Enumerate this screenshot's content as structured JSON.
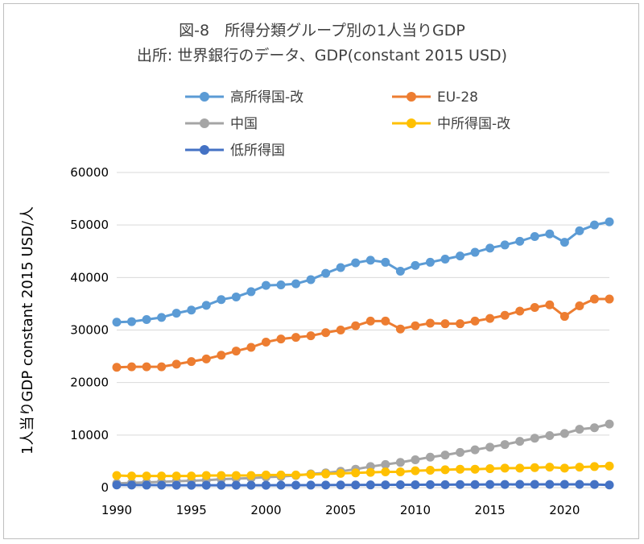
{
  "chart_data": {
    "type": "line",
    "title_lines": [
      "図-8　所得分類グループ別の1人当りGDP",
      "出所: 世界銀行のデータ、GDP(constant 2015 USD)"
    ],
    "xlabel": "",
    "ylabel": "1人当りGDP  constant 2015 USD/人",
    "xlim": [
      1990,
      2023
    ],
    "ylim": [
      0,
      60000
    ],
    "x_ticks": [
      "1990",
      "1995",
      "2000",
      "2005",
      "2010",
      "2015",
      "2020"
    ],
    "x_tick_values": [
      1990,
      1995,
      2000,
      2005,
      2010,
      2015,
      2020
    ],
    "y_ticks": [
      "0",
      "10000",
      "20000",
      "30000",
      "40000",
      "50000",
      "60000"
    ],
    "y_tick_values": [
      0,
      10000,
      20000,
      30000,
      40000,
      50000,
      60000
    ],
    "grid": "horizontal",
    "legend_position": "top",
    "x": [
      1990,
      1991,
      1992,
      1993,
      1994,
      1995,
      1996,
      1997,
      1998,
      1999,
      2000,
      2001,
      2002,
      2003,
      2004,
      2005,
      2006,
      2007,
      2008,
      2009,
      2010,
      2011,
      2012,
      2013,
      2014,
      2015,
      2016,
      2017,
      2018,
      2019,
      2020,
      2021,
      2022,
      2023
    ],
    "series": [
      {
        "name": "高所得国-改",
        "color": "#5b9bd5",
        "values": [
          31500,
          31600,
          32000,
          32400,
          33200,
          33800,
          34700,
          35800,
          36300,
          37300,
          38500,
          38600,
          38800,
          39600,
          40800,
          41900,
          42800,
          43300,
          42900,
          41200,
          42300,
          42900,
          43500,
          44100,
          44800,
          45600,
          46200,
          46900,
          47800,
          48300,
          46700,
          48900,
          50000,
          50600
        ]
      },
      {
        "name": "EU-28",
        "color": "#ed7d31",
        "values": [
          22900,
          23000,
          23000,
          23000,
          23500,
          24000,
          24500,
          25200,
          26000,
          26700,
          27700,
          28300,
          28600,
          28900,
          29500,
          30000,
          30800,
          31700,
          31700,
          30200,
          30800,
          31300,
          31200,
          31200,
          31700,
          32200,
          32800,
          33600,
          34300,
          34800,
          32600,
          34600,
          35900,
          35900
        ]
      },
      {
        "name": "中国",
        "color": "#a5a5a5",
        "values": [
          800,
          900,
          1000,
          1100,
          1200,
          1300,
          1400,
          1600,
          1700,
          1800,
          2000,
          2100,
          2300,
          2600,
          2800,
          3100,
          3500,
          4000,
          4400,
          4800,
          5300,
          5800,
          6200,
          6700,
          7200,
          7700,
          8200,
          8800,
          9400,
          9900,
          10300,
          11100,
          11400,
          12100
        ]
      },
      {
        "name": "中所得国-改",
        "color": "#ffc000",
        "values": [
          2300,
          2200,
          2200,
          2200,
          2200,
          2200,
          2300,
          2300,
          2300,
          2300,
          2400,
          2400,
          2400,
          2500,
          2600,
          2700,
          2800,
          2900,
          3000,
          3000,
          3200,
          3300,
          3400,
          3500,
          3500,
          3600,
          3700,
          3700,
          3800,
          3900,
          3700,
          3900,
          4000,
          4100
        ]
      },
      {
        "name": "低所得国",
        "color": "#4472c4",
        "values": [
          500,
          480,
          470,
          460,
          450,
          450,
          450,
          450,
          450,
          450,
          450,
          460,
          460,
          470,
          480,
          490,
          500,
          510,
          520,
          530,
          540,
          550,
          560,
          570,
          580,
          590,
          600,
          610,
          620,
          620,
          610,
          610,
          600,
          500
        ]
      }
    ]
  }
}
